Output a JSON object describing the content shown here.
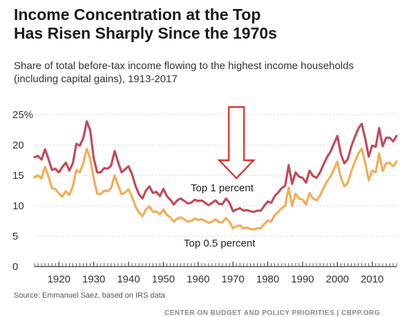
{
  "title": "Income Concentration at the Top\nHas Risen Sharply Since the 1970s",
  "subtitle": "Share of total before-tax income flowing to the highest income households (including capital gains), 1913-2017",
  "source": "Source: Emmanuel Saez, based on IRS data",
  "footer": "CENTER ON BUDGET AND POLICY PRIORITIES | CBPP.ORG",
  "colors": {
    "top1": "#c24a5a",
    "top05": "#f2ad57",
    "arrow": "#e0291f",
    "axis": "#333333",
    "grid": "#c8c8c8"
  },
  "chart_data": {
    "type": "line",
    "title": "Income Concentration at the Top Has Risen Sharply Since the 1970s",
    "xlabel": "",
    "ylabel": "",
    "xlim": [
      1913,
      2017
    ],
    "ylim": [
      0,
      25
    ],
    "y_ticks": [
      0,
      5,
      10,
      15,
      20,
      25
    ],
    "y_tick_labels": [
      "0",
      "5",
      "10",
      "15",
      "20",
      "25%"
    ],
    "x_ticks": [
      1920,
      1930,
      1940,
      1950,
      1960,
      1970,
      1980,
      1990,
      2000,
      2010
    ],
    "grid": "horizontal dotted",
    "annotations": [
      {
        "text": "Top 1 percent",
        "series": "Top 1 percent"
      },
      {
        "text": "Top 0.5 percent",
        "series": "Top 0.5 percent"
      },
      {
        "type": "arrow",
        "direction": "down",
        "at_year": 1971
      }
    ],
    "series": [
      {
        "name": "Top 1 percent",
        "x": [
          1913,
          1914,
          1915,
          1916,
          1917,
          1918,
          1919,
          1920,
          1921,
          1922,
          1923,
          1924,
          1925,
          1926,
          1927,
          1928,
          1929,
          1930,
          1931,
          1932,
          1933,
          1934,
          1935,
          1936,
          1937,
          1938,
          1939,
          1940,
          1941,
          1942,
          1943,
          1944,
          1945,
          1946,
          1947,
          1948,
          1949,
          1950,
          1951,
          1952,
          1953,
          1954,
          1955,
          1956,
          1957,
          1958,
          1959,
          1960,
          1961,
          1962,
          1963,
          1964,
          1965,
          1966,
          1967,
          1968,
          1969,
          1970,
          1971,
          1972,
          1973,
          1974,
          1975,
          1976,
          1977,
          1978,
          1979,
          1980,
          1981,
          1982,
          1983,
          1984,
          1985,
          1986,
          1987,
          1988,
          1989,
          1990,
          1991,
          1992,
          1993,
          1994,
          1995,
          1996,
          1997,
          1998,
          1999,
          2000,
          2001,
          2002,
          2003,
          2004,
          2005,
          2006,
          2007,
          2008,
          2009,
          2010,
          2011,
          2012,
          2013,
          2014,
          2015,
          2016,
          2017
        ],
        "values": [
          18.0,
          18.2,
          17.6,
          19.3,
          17.7,
          15.9,
          16.1,
          15.5,
          16.4,
          17.1,
          15.8,
          17.0,
          20.2,
          19.9,
          21.1,
          23.9,
          22.4,
          17.8,
          15.5,
          15.5,
          16.2,
          16.1,
          16.6,
          19.0,
          17.2,
          15.5,
          16.0,
          16.5,
          15.2,
          13.3,
          11.9,
          11.2,
          12.5,
          13.2,
          12.1,
          12.3,
          11.6,
          12.8,
          11.6,
          11.0,
          10.2,
          10.9,
          11.2,
          10.8,
          10.4,
          10.5,
          11.0,
          10.8,
          10.9,
          10.5,
          10.1,
          10.5,
          10.9,
          10.3,
          10.3,
          11.2,
          10.5,
          9.1,
          9.4,
          9.6,
          9.2,
          9.3,
          9.1,
          9.0,
          9.2,
          9.2,
          10.0,
          10.7,
          10.5,
          11.6,
          12.2,
          12.9,
          13.3,
          16.7,
          13.6,
          15.5,
          14.8,
          14.6,
          13.8,
          15.8,
          14.9,
          14.6,
          15.5,
          16.8,
          18.0,
          18.9,
          20.2,
          21.5,
          18.5,
          17.0,
          17.7,
          19.8,
          21.3,
          22.7,
          23.5,
          21.0,
          18.1,
          19.9,
          19.7,
          22.8,
          19.8,
          21.2,
          21.2,
          20.6,
          21.5
        ]
      },
      {
        "name": "Top 0.5 percent",
        "x": [
          1913,
          1914,
          1915,
          1916,
          1917,
          1918,
          1919,
          1920,
          1921,
          1922,
          1923,
          1924,
          1925,
          1926,
          1927,
          1928,
          1929,
          1930,
          1931,
          1932,
          1933,
          1934,
          1935,
          1936,
          1937,
          1938,
          1939,
          1940,
          1941,
          1942,
          1943,
          1944,
          1945,
          1946,
          1947,
          1948,
          1949,
          1950,
          1951,
          1952,
          1953,
          1954,
          1955,
          1956,
          1957,
          1958,
          1959,
          1960,
          1961,
          1962,
          1963,
          1964,
          1965,
          1966,
          1967,
          1968,
          1969,
          1970,
          1971,
          1972,
          1973,
          1974,
          1975,
          1976,
          1977,
          1978,
          1979,
          1980,
          1981,
          1982,
          1983,
          1984,
          1985,
          1986,
          1987,
          1988,
          1989,
          1990,
          1991,
          1992,
          1993,
          1994,
          1995,
          1996,
          1997,
          1998,
          1999,
          2000,
          2001,
          2002,
          2003,
          2004,
          2005,
          2006,
          2007,
          2008,
          2009,
          2010,
          2011,
          2012,
          2013,
          2014,
          2015,
          2016,
          2017
        ],
        "values": [
          14.7,
          15.0,
          14.5,
          16.4,
          14.8,
          12.9,
          12.8,
          12.0,
          11.5,
          12.4,
          11.8,
          13.2,
          15.9,
          15.5,
          17.0,
          19.4,
          17.7,
          14.5,
          12.0,
          11.9,
          12.5,
          12.4,
          12.9,
          15.0,
          13.4,
          11.9,
          12.2,
          12.7,
          11.5,
          9.9,
          8.9,
          8.3,
          9.4,
          9.9,
          9.0,
          9.1,
          8.6,
          9.4,
          8.5,
          8.1,
          7.4,
          7.9,
          8.1,
          7.8,
          7.4,
          7.5,
          7.9,
          7.7,
          7.8,
          7.5,
          7.2,
          7.4,
          7.8,
          7.3,
          7.3,
          8.0,
          7.4,
          6.3,
          6.6,
          6.8,
          6.3,
          6.4,
          6.2,
          6.1,
          6.3,
          6.3,
          7.0,
          7.6,
          7.4,
          8.5,
          9.0,
          9.6,
          10.0,
          13.0,
          10.0,
          12.0,
          11.2,
          11.0,
          10.2,
          12.1,
          11.2,
          10.9,
          11.7,
          12.9,
          14.0,
          14.8,
          16.0,
          17.3,
          14.6,
          13.2,
          13.8,
          15.7,
          17.2,
          18.6,
          19.4,
          17.0,
          14.2,
          15.8,
          15.5,
          18.6,
          15.7,
          17.0,
          17.1,
          16.5,
          17.3
        ]
      }
    ]
  }
}
